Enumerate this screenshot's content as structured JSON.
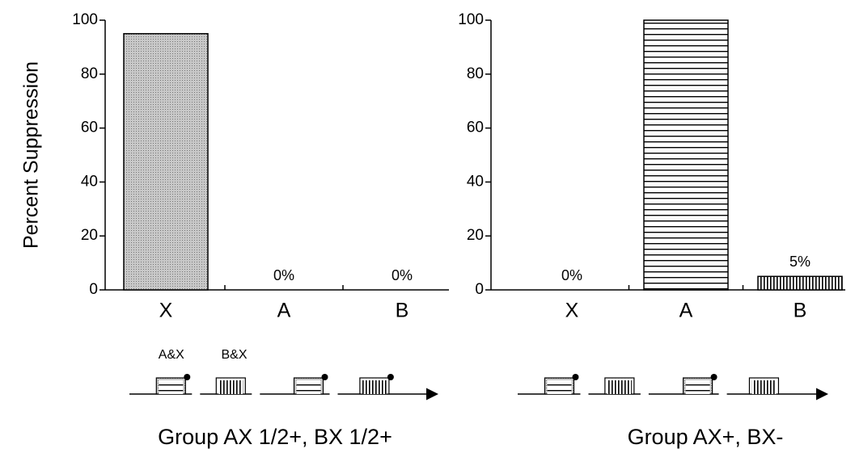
{
  "chart_data": [
    {
      "type": "bar",
      "title": "Group AX 1/2+, BX 1/2+",
      "ylabel": "Percent Suppression",
      "categories": [
        "X",
        "A",
        "B"
      ],
      "values": [
        95,
        0,
        0
      ],
      "value_labels": [
        null,
        "0%",
        "0%"
      ],
      "patterns": [
        "dots",
        "hstripes",
        "vstripes"
      ],
      "ylim": [
        0,
        100
      ],
      "yticks": [
        0,
        20,
        40,
        60,
        80,
        100
      ],
      "annotations": [
        "A&X",
        "B&X"
      ]
    },
    {
      "type": "bar",
      "title": "Group AX+, BX-",
      "categories": [
        "X",
        "A",
        "B"
      ],
      "values": [
        0,
        100,
        5
      ],
      "value_labels": [
        "0%",
        null,
        "5%"
      ],
      "patterns": [
        "dots",
        "hstripes",
        "vstripes"
      ],
      "ylim": [
        0,
        100
      ],
      "yticks": [
        0,
        20,
        40,
        60,
        80,
        100
      ]
    }
  ]
}
